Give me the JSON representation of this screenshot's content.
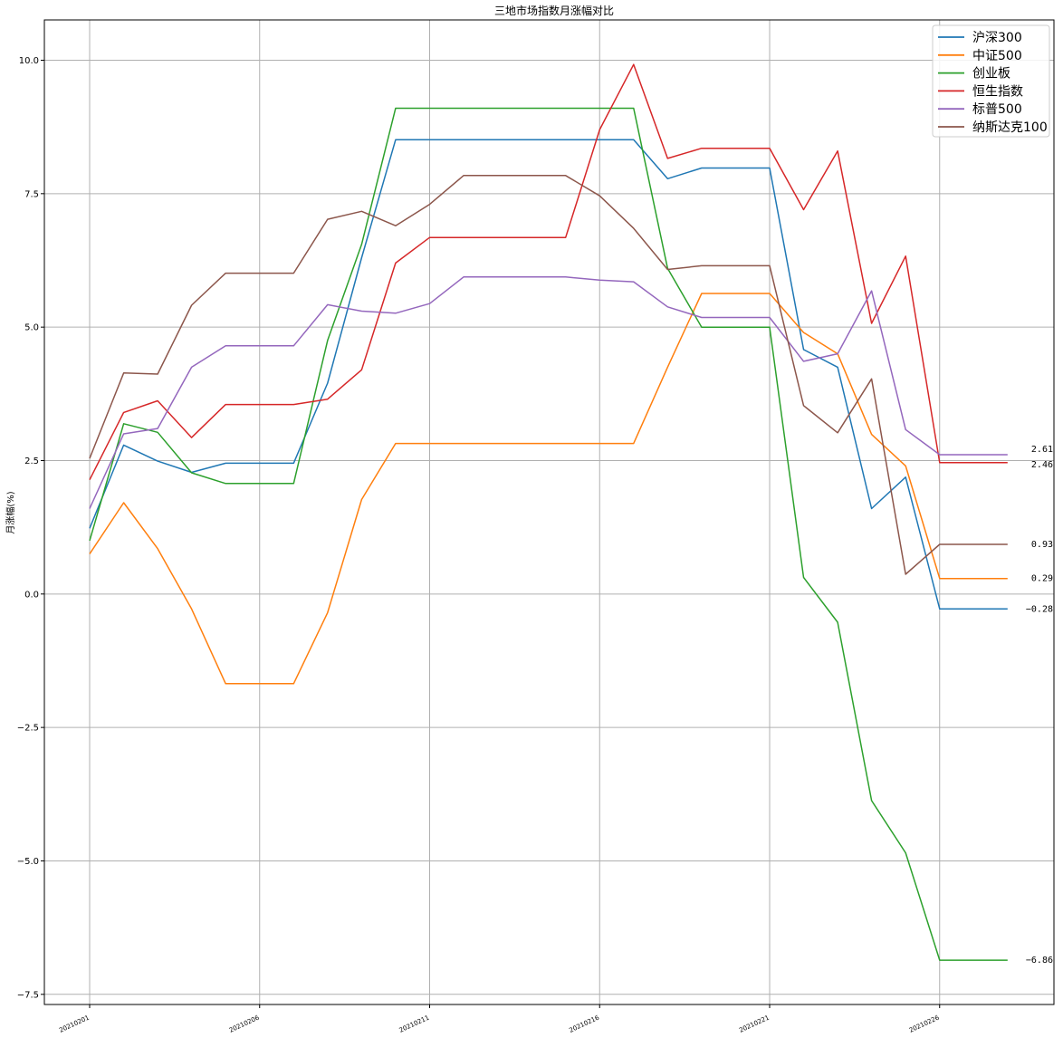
{
  "chart_data": {
    "type": "line",
    "title": "三地市场指数月涨幅对比",
    "ylabel": "月涨幅(%)",
    "xlabel": "",
    "grid": true,
    "legend_position": "top-right",
    "ylim": [
      -7.5,
      10.0
    ],
    "yticks": [
      -7.5,
      -5.0,
      -2.5,
      0.0,
      2.5,
      5.0,
      7.5,
      10.0
    ],
    "ytick_labels": [
      "−7.5",
      "−5.0",
      "−2.5",
      "0.0",
      "2.5",
      "5.0",
      "7.5",
      "10.0"
    ],
    "xtick_indices": [
      0,
      5,
      10,
      15,
      20,
      25
    ],
    "xtick_labels": [
      "20210201",
      "20210206",
      "20210211",
      "20210216",
      "20210221",
      "20210226"
    ],
    "end_labels": [
      "2.61",
      "2.46",
      "0.93",
      "0.29",
      "−0.28",
      "−6.86"
    ],
    "series": [
      {
        "name": "沪深300",
        "color": "#1f77b4",
        "values": [
          1.23,
          2.79,
          2.49,
          2.28,
          2.45,
          2.45,
          2.45,
          3.95,
          6.3,
          8.51,
          8.51,
          8.51,
          8.51,
          8.51,
          8.51,
          8.51,
          8.51,
          7.78,
          7.98,
          7.98,
          7.98,
          4.58,
          4.25,
          1.6,
          2.19,
          -0.28,
          -0.28,
          -0.28
        ]
      },
      {
        "name": "中证500",
        "color": "#ff7f0e",
        "values": [
          0.75,
          1.71,
          0.85,
          -0.28,
          -1.68,
          -1.68,
          -1.68,
          -0.35,
          1.77,
          2.82,
          2.82,
          2.82,
          2.82,
          2.82,
          2.82,
          2.82,
          2.82,
          4.25,
          5.63,
          5.63,
          5.63,
          4.9,
          4.5,
          2.99,
          2.4,
          0.29,
          0.29,
          0.29
        ]
      },
      {
        "name": "创业板",
        "color": "#2ca02c",
        "values": [
          1.0,
          3.19,
          3.03,
          2.27,
          2.07,
          2.07,
          2.07,
          4.75,
          6.55,
          9.1,
          9.1,
          9.1,
          9.1,
          9.1,
          9.1,
          9.1,
          9.1,
          6.1,
          5.0,
          5.0,
          5.0,
          0.31,
          -0.53,
          -3.87,
          -4.85,
          -6.86,
          -6.86,
          -6.86
        ]
      },
      {
        "name": "恒生指数",
        "color": "#d62728",
        "values": [
          2.14,
          3.4,
          3.62,
          2.93,
          3.55,
          3.55,
          3.55,
          3.65,
          4.2,
          6.2,
          6.68,
          6.68,
          6.68,
          6.68,
          6.68,
          8.7,
          9.92,
          8.16,
          8.35,
          8.35,
          8.35,
          7.2,
          8.3,
          5.07,
          6.33,
          2.46,
          2.46,
          2.46
        ]
      },
      {
        "name": "标普500",
        "color": "#9467bd",
        "values": [
          1.6,
          3.0,
          3.1,
          4.25,
          4.65,
          4.65,
          4.65,
          5.42,
          5.3,
          5.26,
          5.44,
          5.94,
          5.94,
          5.94,
          5.94,
          5.88,
          5.85,
          5.38,
          5.18,
          5.18,
          5.18,
          4.36,
          4.5,
          5.68,
          3.08,
          2.61,
          2.61,
          2.61
        ]
      },
      {
        "name": "纳斯达克100",
        "color": "#8c564b",
        "values": [
          2.54,
          4.14,
          4.12,
          5.41,
          6.01,
          6.01,
          6.01,
          7.02,
          7.17,
          6.9,
          7.3,
          7.84,
          7.84,
          7.84,
          7.84,
          7.46,
          6.85,
          6.08,
          6.15,
          6.15,
          6.15,
          3.53,
          3.02,
          4.03,
          0.37,
          0.93,
          0.93,
          0.93
        ]
      }
    ]
  }
}
